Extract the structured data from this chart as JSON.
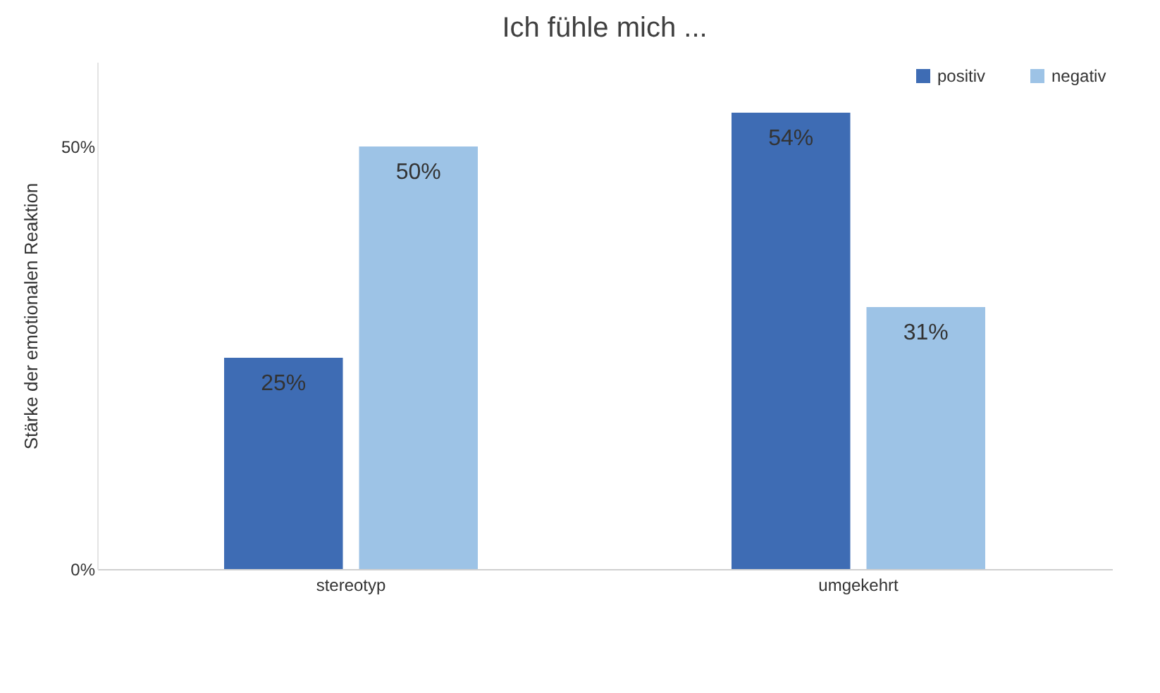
{
  "chart_data": {
    "type": "bar",
    "title": "Ich fühle mich ...",
    "ylabel": "Stärke der emotionalen Reaktion",
    "categories": [
      "stereotyp",
      "umgekehrt"
    ],
    "series": [
      {
        "name": "positiv",
        "color": "#3e6cb4",
        "values": [
          25,
          54
        ],
        "value_labels": [
          "25%",
          "54%"
        ]
      },
      {
        "name": "negativ",
        "color": "#9dc3e6",
        "values": [
          50,
          31
        ],
        "value_labels": [
          "50%",
          "31%"
        ]
      }
    ],
    "ylim": [
      0,
      60
    ],
    "yticks": [
      {
        "value": 0,
        "label": "0%"
      },
      {
        "value": 50,
        "label": "50%"
      }
    ],
    "grid": false,
    "legend": "top right"
  }
}
